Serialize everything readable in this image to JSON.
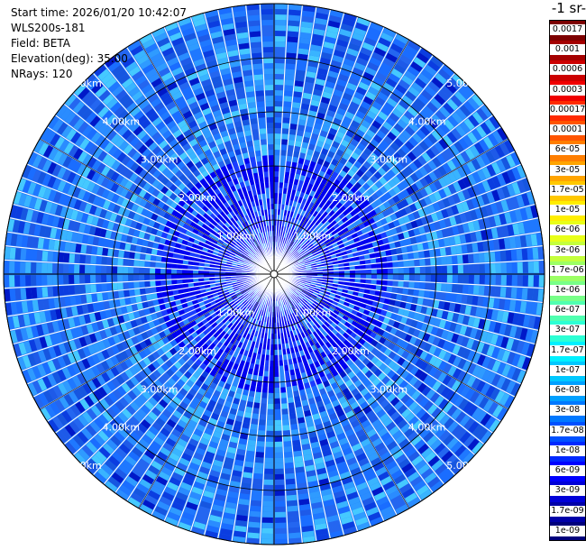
{
  "header": {
    "start_time": "Start time: 2026/01/20 10:42:07",
    "instrument": "WLS200s-181",
    "field": "Field: BETA",
    "elevation": "Elevation(deg): 35.00",
    "nrays": "NRays: 120"
  },
  "colorbar": {
    "unit_label": "-1 sr-",
    "ticks": [
      "0.0017",
      "0.001",
      "0.0006",
      "0.0003",
      "0.00017",
      "0.0001",
      "6e-05",
      "3e-05",
      "1.7e-05",
      "1e-05",
      "6e-06",
      "3e-06",
      "1.7e-06",
      "1e-06",
      "6e-07",
      "3e-07",
      "1.7e-07",
      "1e-07",
      "6e-08",
      "3e-08",
      "1.7e-08",
      "1e-08",
      "6e-09",
      "3e-09",
      "1.7e-09",
      "1e-09"
    ],
    "colors": [
      "#7d0000",
      "#a40000",
      "#cc0000",
      "#f00000",
      "#ff2a00",
      "#ff5400",
      "#ff7e00",
      "#ffa400",
      "#ffc800",
      "#ffee00",
      "#e8ff18",
      "#c4ff3c",
      "#9cff64",
      "#78ff88",
      "#50ffb0",
      "#2cffd4",
      "#00f0ff",
      "#00c8ff",
      "#00a0ff",
      "#0078ff",
      "#0050ff",
      "#0028ff",
      "#0000ff",
      "#0000d8",
      "#0000a8",
      "#00007c"
    ]
  },
  "chart_data": {
    "type": "heatmap",
    "projection": "polar PPI",
    "field": "BETA",
    "elevation_deg": 35.0,
    "n_rays": 120,
    "range_rings_km": [
      1,
      2,
      3,
      4,
      5
    ],
    "range_labels": [
      "1.00km",
      "2.00km",
      "3.00km",
      "4.00km",
      "5.00km"
    ],
    "max_range_km": 5.0,
    "dominant_value_range": [
      "1e-08",
      "1.7e-07"
    ],
    "colorbar_scale": "log"
  }
}
